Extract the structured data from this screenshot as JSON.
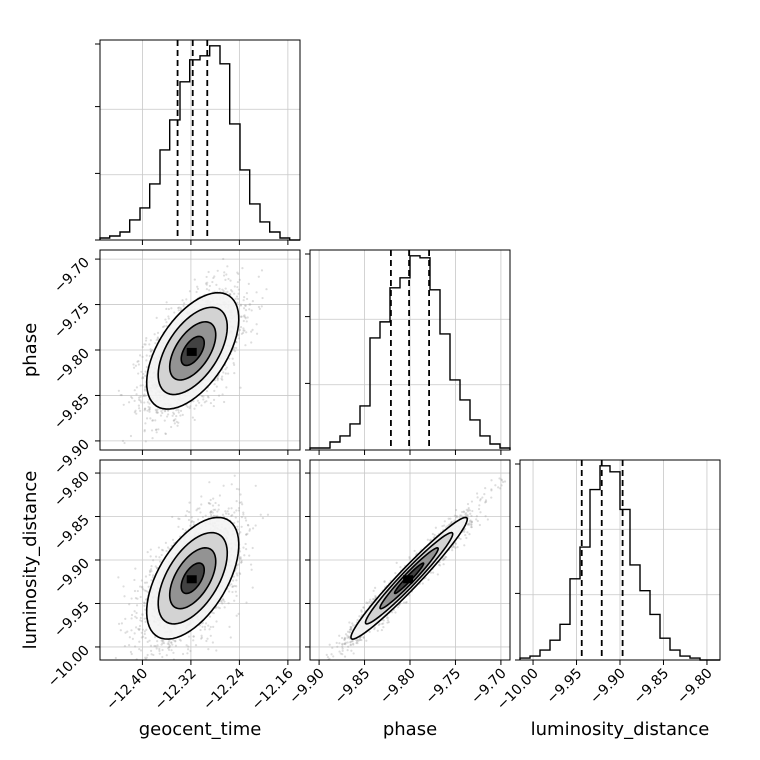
{
  "chart_data": {
    "type": "corner",
    "parameters": [
      "geocent_time",
      "phase",
      "luminosity_distance"
    ],
    "colors": {
      "points": "#9e9e9e",
      "ink": "#000000",
      "grid": "#c8c8c8"
    },
    "grid": true,
    "panels": {
      "geocent_time": {
        "xlim": [
          -12.47,
          -12.14
        ],
        "xticks": [
          -12.4,
          -12.32,
          -12.24,
          -12.16
        ],
        "xtick_labels": [
          "−12.40",
          "−12.32",
          "−12.24",
          "−12.16"
        ],
        "quantiles": [
          -12.342,
          -12.317,
          -12.293
        ],
        "hist": {
          "bin_edges": [
            -12.47,
            -12.454,
            -12.437,
            -12.421,
            -12.404,
            -12.388,
            -12.371,
            -12.355,
            -12.338,
            -12.322,
            -12.305,
            -12.289,
            -12.272,
            -12.256,
            -12.239,
            -12.223,
            -12.206,
            -12.19,
            -12.173,
            -12.157,
            -12.14
          ],
          "counts": [
            1,
            2,
            4,
            10,
            16,
            28,
            45,
            60,
            79,
            90,
            92,
            97,
            88,
            58,
            35,
            18,
            9,
            4,
            1,
            0
          ]
        }
      },
      "phase": {
        "xlim": [
          -9.91,
          -9.69
        ],
        "xticks": [
          -9.9,
          -9.85,
          -9.8,
          -9.75,
          -9.7
        ],
        "xtick_labels": [
          "−9.90",
          "−9.85",
          "−9.80",
          "−9.75",
          "−9.70"
        ],
        "ylim": [
          -9.91,
          -9.69
        ],
        "yticks": [
          -9.9,
          -9.85,
          -9.8,
          -9.75,
          -9.7
        ],
        "ytick_labels": [
          "−9.90",
          "−9.85",
          "−9.80",
          "−9.75",
          "−9.70"
        ],
        "quantiles": [
          -9.821,
          -9.801,
          -9.779
        ],
        "hist": {
          "bin_edges": [
            -9.91,
            -9.899,
            -9.888,
            -9.877,
            -9.866,
            -9.855,
            -9.844,
            -9.833,
            -9.822,
            -9.811,
            -9.8,
            -9.789,
            -9.778,
            -9.767,
            -9.756,
            -9.745,
            -9.734,
            -9.723,
            -9.712,
            -9.701,
            -9.69
          ],
          "counts": [
            1,
            1,
            4,
            7,
            13,
            22,
            56,
            64,
            81,
            86,
            97,
            96,
            80,
            58,
            35,
            25,
            15,
            7,
            3,
            1
          ]
        }
      },
      "luminosity_distance": {
        "xlim": [
          -10.015,
          -9.785
        ],
        "xticks": [
          -10.0,
          -9.95,
          -9.9,
          -9.85,
          -9.8
        ],
        "xtick_labels": [
          "−10.00",
          "−9.95",
          "−9.90",
          "−9.85",
          "−9.80"
        ],
        "ylim": [
          -10.015,
          -9.785
        ],
        "yticks": [
          -10.0,
          -9.95,
          -9.9,
          -9.85,
          -9.8
        ],
        "ytick_labels": [
          "−10.00",
          "−9.95",
          "−9.90",
          "−9.85",
          "−9.80"
        ],
        "quantiles": [
          -9.944,
          -9.921,
          -9.897
        ],
        "hist": {
          "bin_edges": [
            -10.015,
            -10.0035,
            -9.992,
            -9.9805,
            -9.969,
            -9.9575,
            -9.946,
            -9.9345,
            -9.923,
            -9.9115,
            -9.9,
            -9.8885,
            -9.877,
            -9.8655,
            -9.854,
            -9.8425,
            -9.831,
            -9.8195,
            -9.808,
            -9.7965,
            -9.785
          ],
          "counts": [
            1,
            2,
            5,
            10,
            18,
            41,
            57,
            86,
            98,
            95,
            76,
            48,
            35,
            23,
            11,
            5,
            2,
            1,
            0,
            0
          ]
        }
      }
    },
    "pairs": [
      {
        "x": "geocent_time",
        "y": "phase",
        "x_mean": -12.317,
        "y_mean": -9.801,
        "x_std": 0.038,
        "y_std": 0.032,
        "corr": 0.55,
        "n_points": 2600
      },
      {
        "x": "geocent_time",
        "y": "luminosity_distance",
        "x_mean": -12.317,
        "y_mean": -9.921,
        "x_std": 0.038,
        "y_std": 0.035,
        "corr": 0.55,
        "n_points": 2600
      },
      {
        "x": "phase",
        "y": "luminosity_distance",
        "x_mean": -9.801,
        "y_mean": -9.921,
        "x_std": 0.032,
        "y_std": 0.035,
        "corr": 0.97,
        "n_points": 2600
      }
    ],
    "contour_levels_sigma": [
      0.5,
      1.0,
      1.5,
      2.0
    ]
  }
}
